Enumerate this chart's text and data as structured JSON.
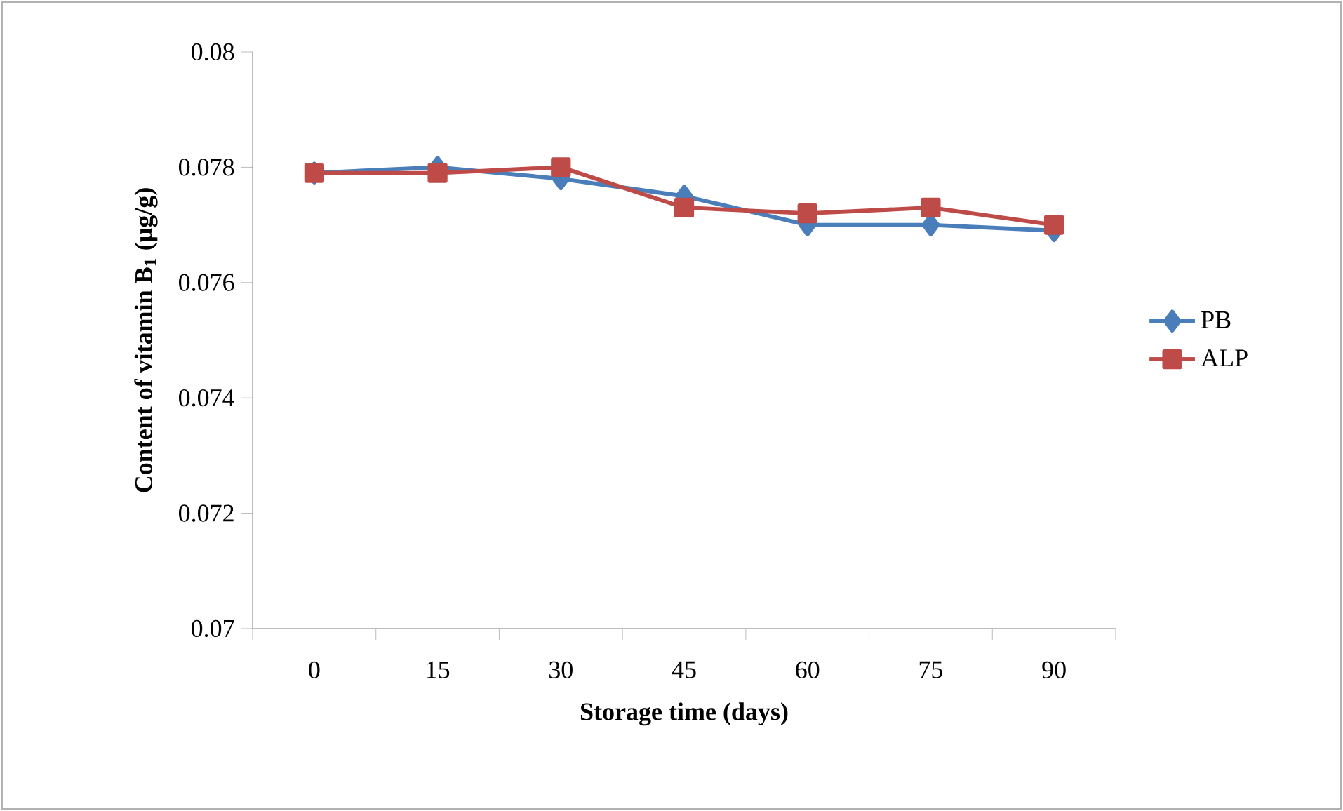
{
  "chart_data": {
    "type": "line",
    "xlabel": "Storage time (days)",
    "ylabel": "Content of vitamin B$_{1}$ (µg/g)",
    "categories": [
      "0",
      "15",
      "30",
      "45",
      "60",
      "75",
      "90"
    ],
    "series": [
      {
        "name": "PB",
        "color": "#4a7ebb",
        "marker": "diamond",
        "values": [
          0.0779,
          0.078,
          0.0778,
          0.0775,
          0.077,
          0.077,
          0.0769
        ]
      },
      {
        "name": "ALP",
        "color": "#be4b48",
        "marker": "square",
        "values": [
          0.0779,
          0.0779,
          0.078,
          0.0773,
          0.0772,
          0.0773,
          0.077
        ]
      }
    ],
    "ylim": [
      0.07,
      0.08
    ],
    "yticks": [
      0.07,
      0.072,
      0.074,
      0.076,
      0.078,
      0.08
    ],
    "legend": "right",
    "grid": false
  }
}
